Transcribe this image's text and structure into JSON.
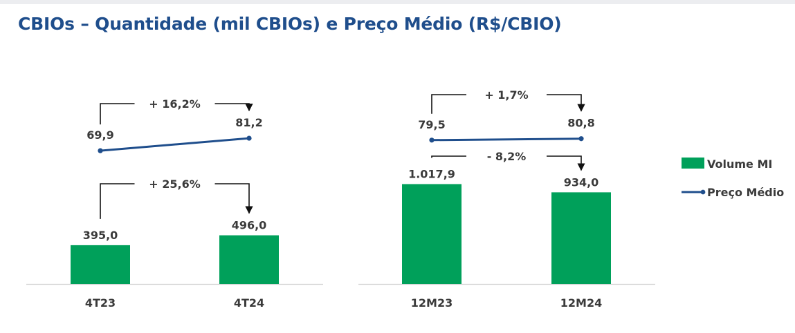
{
  "title": "CBIOs – Quantidade (mil CBIOs) e Preço Médio (R$/CBIO)",
  "colors": {
    "bar": "#00a05a",
    "line": "#1f4e8c",
    "title": "#1f4e8c",
    "text": "#3a3a3a"
  },
  "legend": {
    "placement": "right",
    "items": [
      {
        "label": "Volume MI",
        "kind": "bar"
      },
      {
        "label": "Preço Médio",
        "kind": "line"
      }
    ]
  },
  "chart_data": [
    {
      "type": "bar+line",
      "categories": [
        "4T23",
        "4T24"
      ],
      "series": [
        {
          "name": "Volume MI",
          "type": "bar",
          "values": [
            395.0,
            496.0
          ],
          "labels": [
            "395,0",
            "496,0"
          ]
        },
        {
          "name": "Preço Médio",
          "type": "line",
          "values": [
            69.9,
            81.2
          ],
          "labels": [
            "69,9",
            "81,2"
          ]
        }
      ],
      "annotations": {
        "price_change": "+ 16,2%",
        "volume_change": "+ 25,6%"
      }
    },
    {
      "type": "bar+line",
      "categories": [
        "12M23",
        "12M24"
      ],
      "series": [
        {
          "name": "Volume MI",
          "type": "bar",
          "values": [
            1017.9,
            934.0
          ],
          "labels": [
            "1.017,9",
            "934,0"
          ]
        },
        {
          "name": "Preço Médio",
          "type": "line",
          "values": [
            79.5,
            80.8
          ],
          "labels": [
            "79,5",
            "80,8"
          ]
        }
      ],
      "annotations": {
        "price_change": "+ 1,7%",
        "volume_change": "- 8,2%"
      }
    }
  ]
}
